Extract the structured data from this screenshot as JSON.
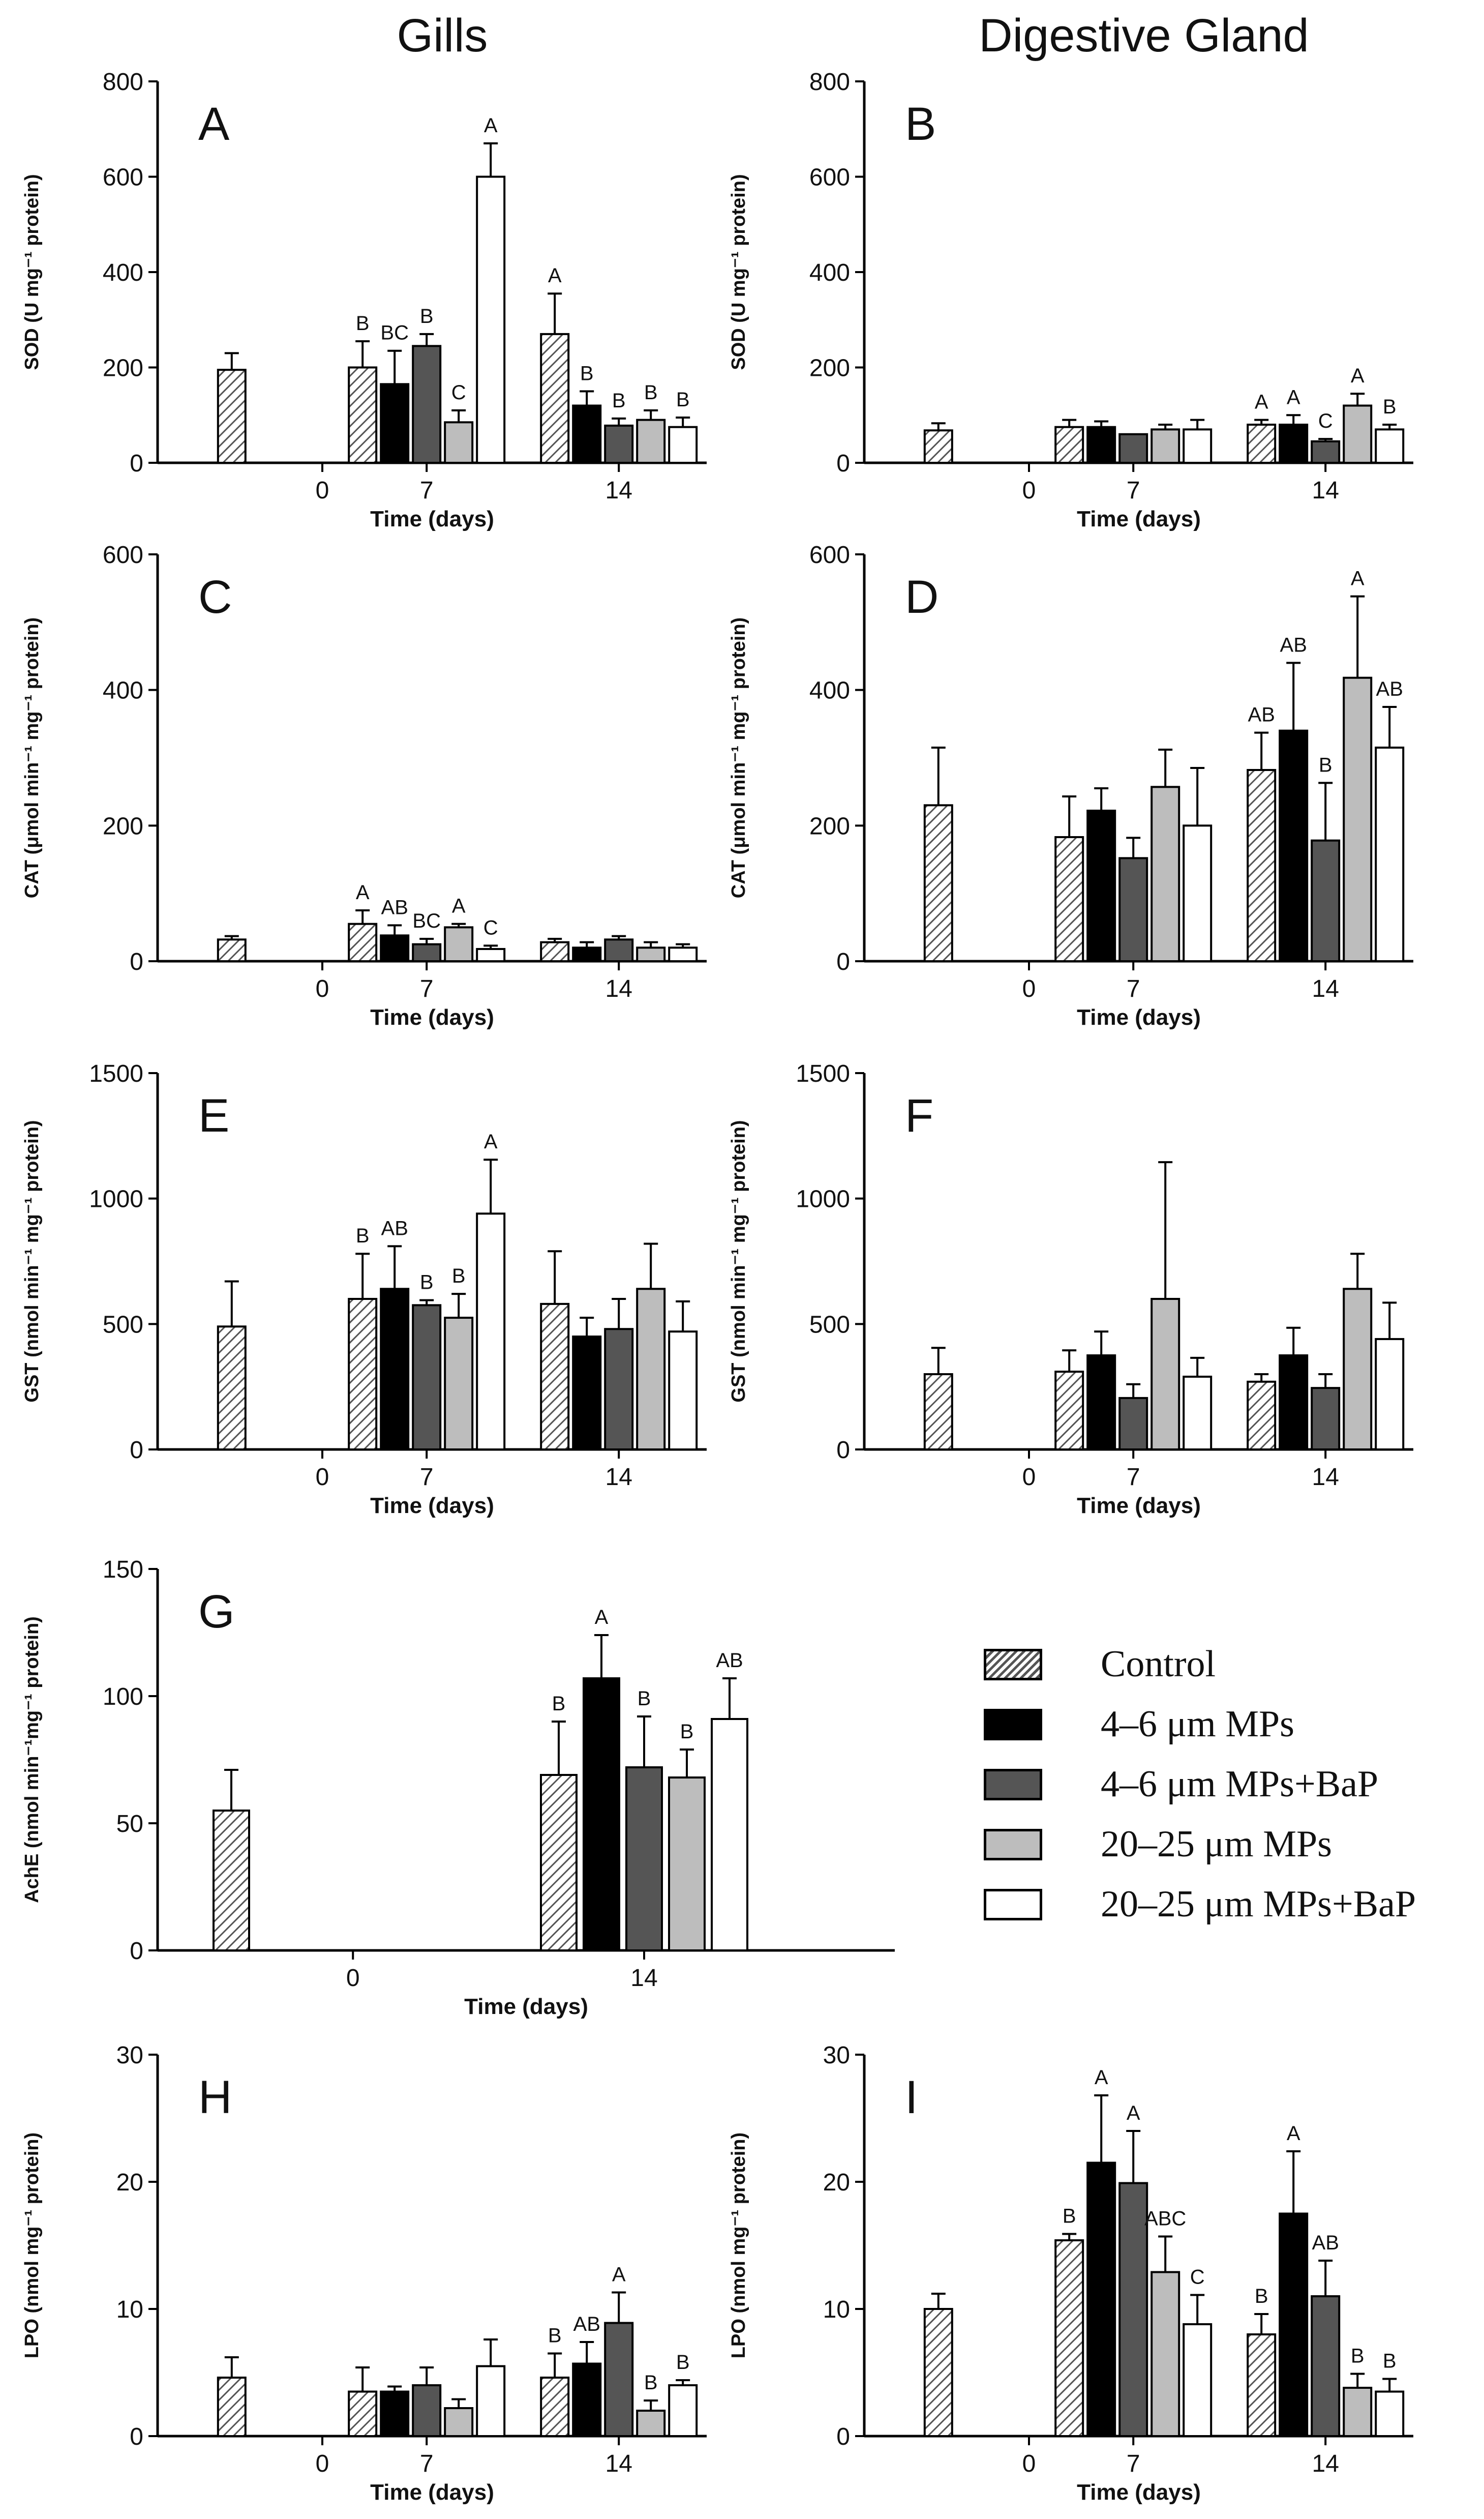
{
  "column_titles": {
    "left": "Gills",
    "right": "Digestive Gland"
  },
  "legend": [
    {
      "label": "Control",
      "fill": "hatch"
    },
    {
      "label": "4–6 μm MPs",
      "fill": "#000000"
    },
    {
      "label": "4–6 μm MPs+BaP",
      "fill": "#555555"
    },
    {
      "label": "20–25 μm MPs",
      "fill": "#bdbdbd"
    },
    {
      "label": "20–25 μm MPs+BaP",
      "fill": "#ffffff"
    }
  ],
  "chart_data": [
    {
      "panel": "A",
      "type": "bar",
      "ylabel": "SOD (U mg⁻¹ protein)",
      "xlabel": "Time (days)",
      "ylim": [
        0,
        800
      ],
      "yticks": [
        0,
        200,
        400,
        600,
        800
      ],
      "categories": [
        "0",
        "7",
        "14"
      ],
      "series": [
        {
          "name": "Control",
          "values": [
            195,
            200,
            270
          ],
          "errors": [
            35,
            55,
            85
          ],
          "letters": [
            "",
            "B",
            "A"
          ]
        },
        {
          "name": "4–6 μm MPs",
          "values": [
            null,
            165,
            120
          ],
          "errors": [
            null,
            70,
            30
          ],
          "letters": [
            "",
            "BC",
            "B"
          ]
        },
        {
          "name": "4–6 μm MPs+BaP",
          "values": [
            null,
            245,
            78
          ],
          "errors": [
            null,
            25,
            15
          ],
          "letters": [
            "",
            "B",
            "B"
          ]
        },
        {
          "name": "20–25 μm MPs",
          "values": [
            null,
            85,
            90
          ],
          "errors": [
            null,
            25,
            20
          ],
          "letters": [
            "",
            "C",
            "B"
          ]
        },
        {
          "name": "20–25 μm MPs+BaP",
          "values": [
            null,
            600,
            75
          ],
          "errors": [
            null,
            70,
            20
          ],
          "letters": [
            "",
            "A",
            "B"
          ]
        }
      ]
    },
    {
      "panel": "B",
      "type": "bar",
      "ylabel": "SOD (U mg⁻¹ protein)",
      "xlabel": "Time (days)",
      "ylim": [
        0,
        800
      ],
      "yticks": [
        0,
        200,
        400,
        600,
        800
      ],
      "categories": [
        "0",
        "7",
        "14"
      ],
      "series": [
        {
          "name": "Control",
          "values": [
            68,
            75,
            80
          ],
          "errors": [
            15,
            15,
            10
          ],
          "letters": [
            "",
            "",
            "A"
          ]
        },
        {
          "name": "4–6 μm MPs",
          "values": [
            null,
            75,
            80
          ],
          "errors": [
            null,
            12,
            20
          ],
          "letters": [
            "",
            "",
            "A"
          ]
        },
        {
          "name": "4–6 μm MPs+BaP",
          "values": [
            null,
            60,
            45
          ],
          "errors": [
            null,
            0,
            5
          ],
          "letters": [
            "",
            "",
            "C"
          ]
        },
        {
          "name": "20–25 μm MPs",
          "values": [
            null,
            70,
            120
          ],
          "errors": [
            null,
            10,
            25
          ],
          "letters": [
            "",
            "",
            "A"
          ]
        },
        {
          "name": "20–25 μm MPs+BaP",
          "values": [
            null,
            70,
            70
          ],
          "errors": [
            null,
            20,
            10
          ],
          "letters": [
            "",
            "",
            "B"
          ]
        }
      ]
    },
    {
      "panel": "C",
      "type": "bar",
      "ylabel": "CAT (μmol min⁻¹ mg⁻¹ protein)",
      "xlabel": "Time (days)",
      "ylim": [
        0,
        600
      ],
      "yticks": [
        0,
        200,
        400,
        600
      ],
      "categories": [
        "0",
        "7",
        "14"
      ],
      "series": [
        {
          "name": "Control",
          "values": [
            32,
            55,
            28
          ],
          "errors": [
            5,
            20,
            5
          ],
          "letters": [
            "",
            "A",
            ""
          ]
        },
        {
          "name": "4–6 μm MPs",
          "values": [
            null,
            38,
            20
          ],
          "errors": [
            null,
            15,
            8
          ],
          "letters": [
            "",
            "AB",
            ""
          ]
        },
        {
          "name": "4–6 μm MPs+BaP",
          "values": [
            null,
            25,
            32
          ],
          "errors": [
            null,
            8,
            5
          ],
          "letters": [
            "",
            "BC",
            ""
          ]
        },
        {
          "name": "20–25 μm MPs",
          "values": [
            null,
            50,
            20
          ],
          "errors": [
            null,
            5,
            8
          ],
          "letters": [
            "",
            "A",
            ""
          ]
        },
        {
          "name": "20–25 μm MPs+BaP",
          "values": [
            null,
            18,
            20
          ],
          "errors": [
            null,
            5,
            5
          ],
          "letters": [
            "",
            "C",
            ""
          ]
        }
      ]
    },
    {
      "panel": "D",
      "type": "bar",
      "ylabel": "CAT (μmol min⁻¹ mg⁻¹ protein)",
      "xlabel": "Time (days)",
      "ylim": [
        0,
        600
      ],
      "yticks": [
        0,
        200,
        400,
        600
      ],
      "categories": [
        "0",
        "7",
        "14"
      ],
      "series": [
        {
          "name": "Control",
          "values": [
            230,
            183,
            282
          ],
          "errors": [
            85,
            60,
            55
          ],
          "letters": [
            "",
            "",
            "AB"
          ]
        },
        {
          "name": "4–6 μm MPs",
          "values": [
            null,
            222,
            340
          ],
          "errors": [
            null,
            33,
            100
          ],
          "letters": [
            "",
            "",
            "AB"
          ]
        },
        {
          "name": "4–6 μm MPs+BaP",
          "values": [
            null,
            152,
            178
          ],
          "errors": [
            null,
            30,
            85
          ],
          "letters": [
            "",
            "",
            "B"
          ]
        },
        {
          "name": "20–25 μm MPs",
          "values": [
            null,
            257,
            418
          ],
          "errors": [
            null,
            55,
            120
          ],
          "letters": [
            "",
            "",
            "A"
          ]
        },
        {
          "name": "20–25 μm MPs+BaP",
          "values": [
            null,
            200,
            315
          ],
          "errors": [
            null,
            85,
            60
          ],
          "letters": [
            "",
            "",
            "AB"
          ]
        }
      ]
    },
    {
      "panel": "E",
      "type": "bar",
      "ylabel": "GST (nmol min⁻¹ mg⁻¹ protein)",
      "xlabel": "Time (days)",
      "ylim": [
        0,
        1500
      ],
      "yticks": [
        0,
        500,
        1000,
        1500
      ],
      "categories": [
        "0",
        "7",
        "14"
      ],
      "series": [
        {
          "name": "Control",
          "values": [
            490,
            600,
            580
          ],
          "errors": [
            180,
            180,
            210
          ],
          "letters": [
            "",
            "B",
            ""
          ]
        },
        {
          "name": "4–6 μm MPs",
          "values": [
            null,
            640,
            450
          ],
          "errors": [
            null,
            170,
            75
          ],
          "letters": [
            "",
            "AB",
            ""
          ]
        },
        {
          "name": "4–6 μm MPs+BaP",
          "values": [
            null,
            575,
            480
          ],
          "errors": [
            null,
            20,
            120
          ],
          "letters": [
            "",
            "B",
            ""
          ]
        },
        {
          "name": "20–25 μm MPs",
          "values": [
            null,
            525,
            640
          ],
          "errors": [
            null,
            95,
            180
          ],
          "letters": [
            "",
            "B",
            ""
          ]
        },
        {
          "name": "20–25 μm MPs+BaP",
          "values": [
            null,
            940,
            470
          ],
          "errors": [
            null,
            215,
            120
          ],
          "letters": [
            "",
            "A",
            ""
          ]
        }
      ]
    },
    {
      "panel": "F",
      "type": "bar",
      "ylabel": "GST (nmol min⁻¹ mg⁻¹ protein)",
      "xlabel": "Time (days)",
      "ylim": [
        0,
        1500
      ],
      "yticks": [
        0,
        500,
        1000,
        1500
      ],
      "categories": [
        "0",
        "7",
        "14"
      ],
      "series": [
        {
          "name": "Control",
          "values": [
            300,
            310,
            270
          ],
          "errors": [
            105,
            85,
            30
          ],
          "letters": [
            "",
            "",
            ""
          ]
        },
        {
          "name": "4–6 μm MPs",
          "values": [
            null,
            375,
            375
          ],
          "errors": [
            null,
            95,
            110
          ],
          "letters": [
            "",
            "",
            ""
          ]
        },
        {
          "name": "4–6 μm MPs+BaP",
          "values": [
            null,
            205,
            245
          ],
          "errors": [
            null,
            55,
            55
          ],
          "letters": [
            "",
            "",
            ""
          ]
        },
        {
          "name": "20–25 μm MPs",
          "values": [
            null,
            600,
            640
          ],
          "errors": [
            null,
            545,
            140
          ],
          "letters": [
            "",
            "",
            ""
          ]
        },
        {
          "name": "20–25 μm MPs+BaP",
          "values": [
            null,
            290,
            440
          ],
          "errors": [
            null,
            75,
            145
          ],
          "letters": [
            "",
            "",
            ""
          ]
        }
      ]
    },
    {
      "panel": "G",
      "type": "bar",
      "ylabel": "AchE (nmol min⁻¹mg⁻¹ protein)",
      "xlabel": "Time (days)",
      "ylim": [
        0,
        150
      ],
      "yticks": [
        0,
        50,
        100,
        150
      ],
      "categories": [
        "0",
        "14"
      ],
      "series": [
        {
          "name": "Control",
          "values": [
            55,
            69
          ],
          "errors": [
            16,
            21
          ],
          "letters": [
            "",
            "B"
          ]
        },
        {
          "name": "4–6 μm MPs",
          "values": [
            null,
            107
          ],
          "errors": [
            null,
            17
          ],
          "letters": [
            "",
            "A"
          ]
        },
        {
          "name": "4–6 μm MPs+BaP",
          "values": [
            null,
            72
          ],
          "errors": [
            null,
            20
          ],
          "letters": [
            "",
            "B"
          ]
        },
        {
          "name": "20–25 μm MPs",
          "values": [
            null,
            68
          ],
          "errors": [
            null,
            11
          ],
          "letters": [
            "",
            "B"
          ]
        },
        {
          "name": "20–25 μm MPs+BaP",
          "values": [
            null,
            91
          ],
          "errors": [
            null,
            16
          ],
          "letters": [
            "",
            "AB"
          ]
        }
      ]
    },
    {
      "panel": "H",
      "type": "bar",
      "ylabel": "LPO (nmol mg⁻¹ protein)",
      "xlabel": "Time (days)",
      "ylim": [
        0,
        30
      ],
      "yticks": [
        0,
        10,
        20,
        30
      ],
      "categories": [
        "0",
        "7",
        "14"
      ],
      "series": [
        {
          "name": "Control",
          "values": [
            4.6,
            3.5,
            4.6
          ],
          "errors": [
            1.6,
            1.9,
            1.9
          ],
          "letters": [
            "",
            "",
            "B"
          ]
        },
        {
          "name": "4–6 μm MPs",
          "values": [
            null,
            3.5,
            5.7
          ],
          "errors": [
            null,
            0.4,
            1.7
          ],
          "letters": [
            "",
            "",
            "AB"
          ]
        },
        {
          "name": "4–6 μm MPs+BaP",
          "values": [
            null,
            4.0,
            8.9
          ],
          "errors": [
            null,
            1.4,
            2.4
          ],
          "letters": [
            "",
            "",
            "A"
          ]
        },
        {
          "name": "20–25 μm MPs",
          "values": [
            null,
            2.2,
            2.0
          ],
          "errors": [
            null,
            0.7,
            0.8
          ],
          "letters": [
            "",
            "",
            "B"
          ]
        },
        {
          "name": "20–25 μm MPs+BaP",
          "values": [
            null,
            5.5,
            4.0
          ],
          "errors": [
            null,
            2.1,
            0.4
          ],
          "letters": [
            "",
            "",
            "B"
          ]
        }
      ]
    },
    {
      "panel": "I",
      "type": "bar",
      "ylabel": "LPO (nmol mg⁻¹ protein)",
      "xlabel": "Time (days)",
      "ylim": [
        0,
        30
      ],
      "yticks": [
        0,
        10,
        20,
        30
      ],
      "categories": [
        "0",
        "7",
        "14"
      ],
      "series": [
        {
          "name": "Control",
          "values": [
            10.0,
            15.4,
            8.0
          ],
          "errors": [
            1.2,
            0.5,
            1.6
          ],
          "letters": [
            "",
            "B",
            "B"
          ]
        },
        {
          "name": "4–6 μm MPs",
          "values": [
            null,
            21.5,
            17.5
          ],
          "errors": [
            null,
            5.3,
            4.9
          ],
          "letters": [
            "",
            "A",
            "A"
          ]
        },
        {
          "name": "4–6 μm MPs+BaP",
          "values": [
            null,
            19.9,
            11.0
          ],
          "errors": [
            null,
            4.1,
            2.8
          ],
          "letters": [
            "",
            "A",
            "AB"
          ]
        },
        {
          "name": "20–25 μm MPs",
          "values": [
            null,
            12.9,
            3.8
          ],
          "errors": [
            null,
            2.8,
            1.1
          ],
          "letters": [
            "",
            "ABC",
            "B"
          ]
        },
        {
          "name": "20–25 μm MPs+BaP",
          "values": [
            null,
            8.8,
            3.5
          ],
          "errors": [
            null,
            2.3,
            1.0
          ],
          "letters": [
            "",
            "C",
            "B"
          ]
        }
      ]
    }
  ]
}
